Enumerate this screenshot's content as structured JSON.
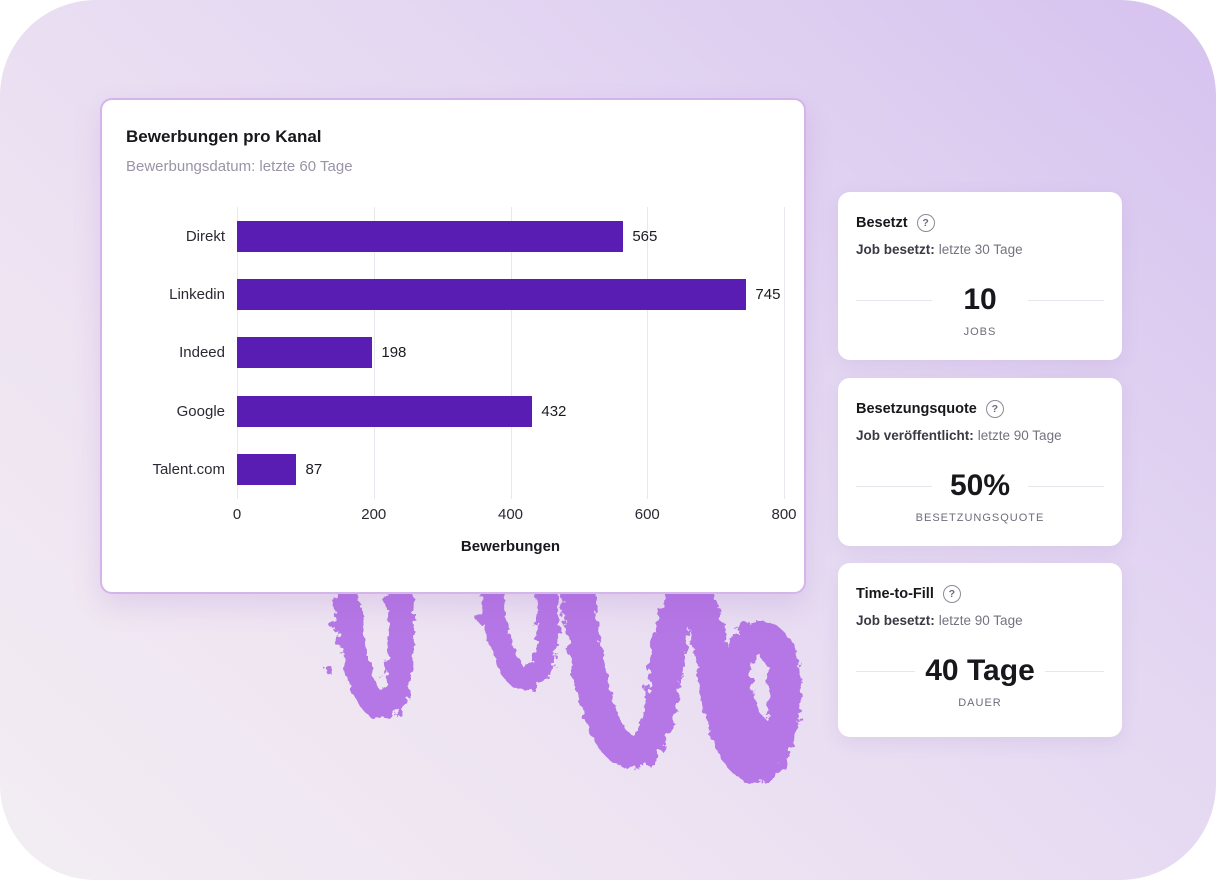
{
  "chart_data": {
    "type": "bar",
    "orientation": "horizontal",
    "title": "Bewerbungen pro Kanal",
    "subtitle": "Bewerbungsdatum: letzte 60 Tage",
    "categories": [
      "Direkt",
      "Linkedin",
      "Indeed",
      "Google",
      "Talent.com"
    ],
    "values": [
      565,
      745,
      198,
      432,
      87
    ],
    "xlabel": "Bewerbungen",
    "xlim": [
      0,
      800
    ],
    "xticks": [
      0,
      200,
      400,
      600,
      800
    ],
    "bar_color": "#5a1db4",
    "grid": true,
    "legend": false
  },
  "stat_cards": [
    {
      "title": "Besetzt",
      "subtitle_label": "Job besetzt:",
      "subtitle_value": "letzte 30 Tage",
      "value": "10",
      "unit": "JOBS"
    },
    {
      "title": "Besetzungsquote",
      "subtitle_label": "Job veröffentlicht:",
      "subtitle_value": "letzte 90 Tage",
      "value": "50%",
      "unit": "BESETZUNGSQUOTE"
    },
    {
      "title": "Time-to-Fill",
      "subtitle_label": "Job besetzt:",
      "subtitle_value": "letzte 90 Tage",
      "value": "40 Tage",
      "unit": "DAUER"
    }
  ],
  "icons": {
    "help": "?"
  },
  "decor": {
    "scribble_color": "#b577e5"
  },
  "colors": {
    "accent_purple": "#5a1db4",
    "card_border": "#d5b4e9",
    "background_top_right": "#d6c2ef",
    "background_bottom_left": "#f3edf3"
  }
}
